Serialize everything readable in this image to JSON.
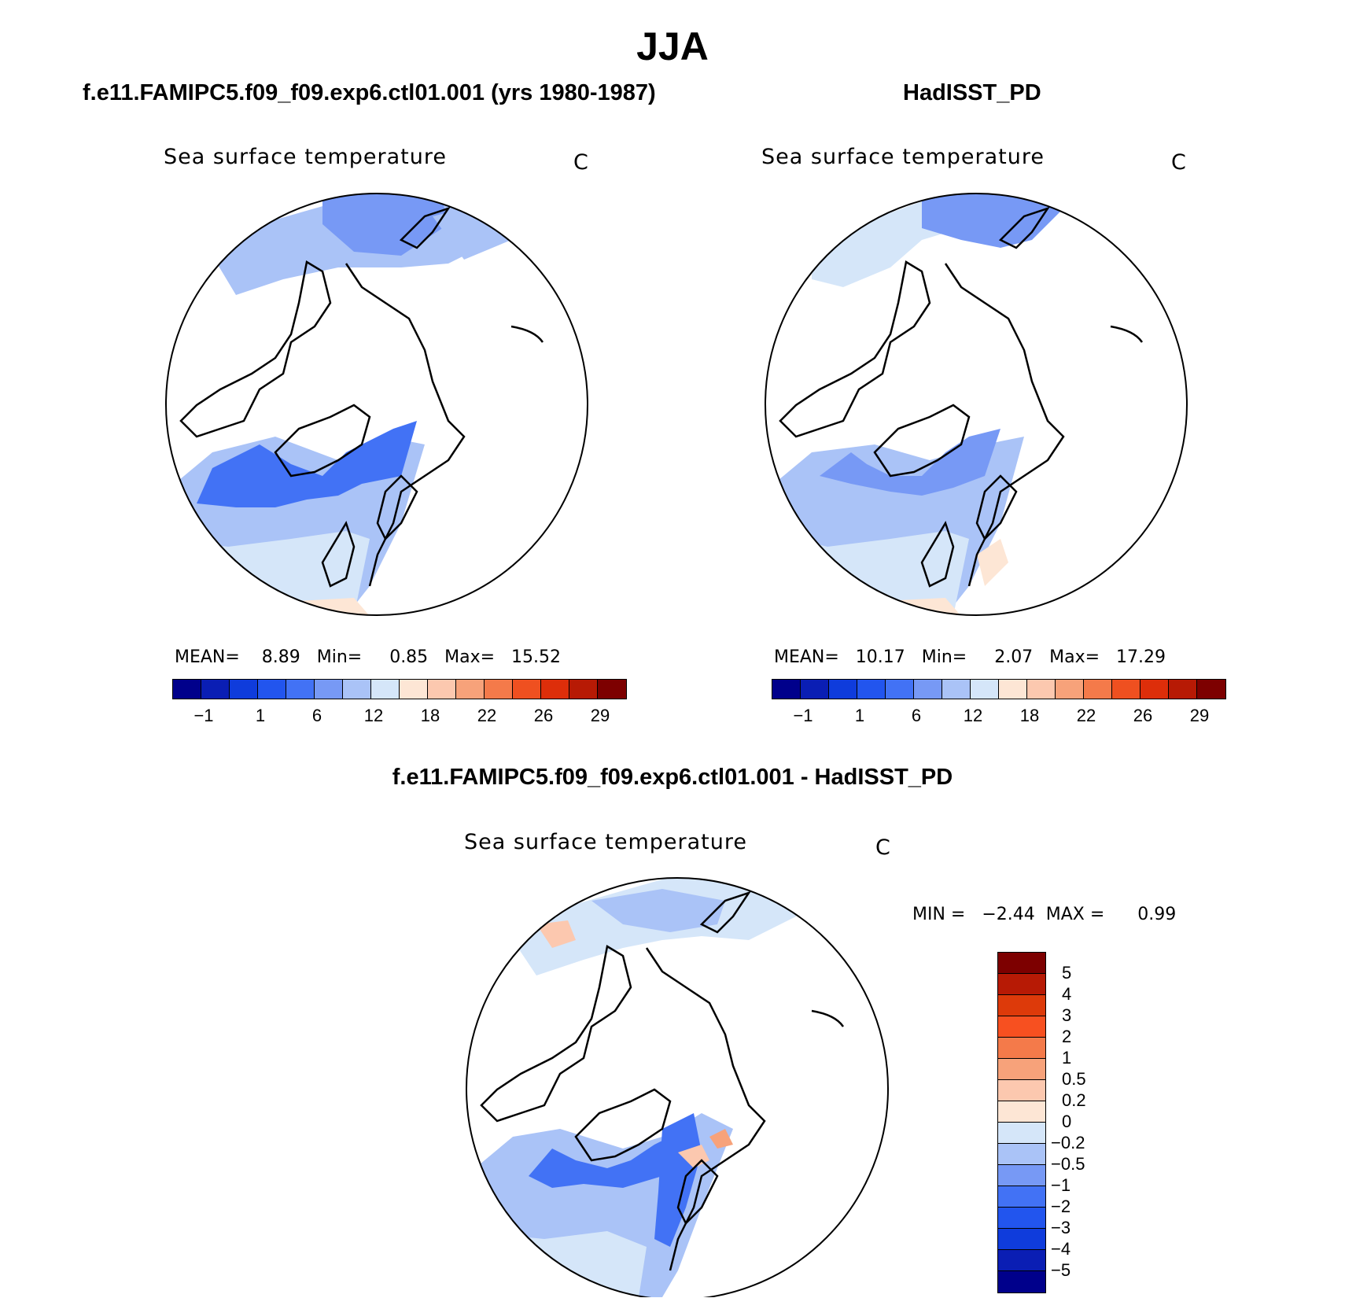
{
  "season_title": "JJA",
  "panels": {
    "model": {
      "title": "f.e11.FAMIPC5.f09_f09.exp6.ctl01.001 (yrs 1980-1987)",
      "variable": "Sea surface temperature",
      "units": "C",
      "stats": "MEAN=    8.89   Min=     0.85   Max=   15.52"
    },
    "obs": {
      "title": "HadISST_PD",
      "variable": "Sea surface temperature",
      "units": "C",
      "stats": "MEAN=   10.17   Min=     2.07   Max=   17.29"
    },
    "diff": {
      "title": "f.e11.FAMIPC5.f09_f09.exp6.ctl01.001 - HadISST_PD",
      "variable": "Sea surface temperature",
      "units": "C",
      "stats": "MIN =   −2.44  MAX =      0.99"
    }
  },
  "colorbar_abs": {
    "colors": [
      "#00008b",
      "#0a1eb4",
      "#0f3cdc",
      "#2255ee",
      "#4272f5",
      "#7799f5",
      "#aac3f7",
      "#d5e6f9",
      "#fde6d5",
      "#fcc8af",
      "#f7a27a",
      "#f47a4a",
      "#ef5020",
      "#dd2e0a",
      "#b71a05",
      "#7d0000"
    ],
    "tick_labels": [
      "−1",
      "1",
      "6",
      "12",
      "18",
      "22",
      "26",
      "29"
    ]
  },
  "colorbar_diff": {
    "colors": [
      "#7d0000",
      "#b71a05",
      "#dd3a0a",
      "#f75020",
      "#f47a4a",
      "#f7a27a",
      "#fcc8af",
      "#fde6d5",
      "#d5e6f9",
      "#aac3f7",
      "#7799f5",
      "#4272f5",
      "#2255ee",
      "#0f3cdc",
      "#0a1eb4",
      "#00008b"
    ],
    "tick_labels": [
      "5",
      "4",
      "3",
      "2",
      "1",
      "0.5",
      "0.2",
      "0",
      "−0.2",
      "−0.5",
      "−1",
      "−2",
      "−3",
      "−4",
      "−5"
    ]
  }
}
